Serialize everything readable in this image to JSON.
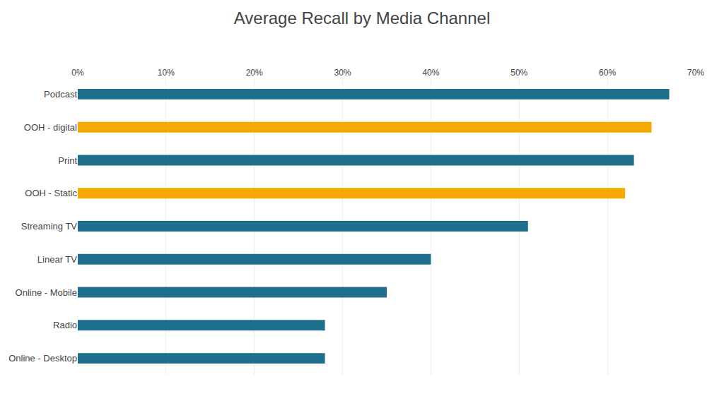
{
  "chart_data": {
    "type": "bar",
    "orientation": "horizontal",
    "title": "Average Recall by Media Channel",
    "categories": [
      "Online - Desktop",
      "Radio",
      "Online - Mobile",
      "Linear TV",
      "Streaming TV",
      "OOH - Static",
      "Print",
      "OOH - digital",
      "Podcast"
    ],
    "values": [
      28,
      28,
      35,
      40,
      51,
      62,
      63,
      65,
      67
    ],
    "colors": [
      "#1e6f8c",
      "#1e6f8c",
      "#1e6f8c",
      "#1e6f8c",
      "#1e6f8c",
      "#f5a800",
      "#1e6f8c",
      "#f5a800",
      "#1e6f8c"
    ],
    "xlim": [
      0,
      70
    ],
    "xticks": [
      {
        "value": 0,
        "label": "0%"
      },
      {
        "value": 10,
        "label": "10%"
      },
      {
        "value": 20,
        "label": "20%"
      },
      {
        "value": 30,
        "label": "30%"
      },
      {
        "value": 40,
        "label": "40%"
      },
      {
        "value": 50,
        "label": "50%"
      },
      {
        "value": 60,
        "label": "60%"
      },
      {
        "value": 70,
        "label": "70%"
      }
    ],
    "grid": true
  }
}
